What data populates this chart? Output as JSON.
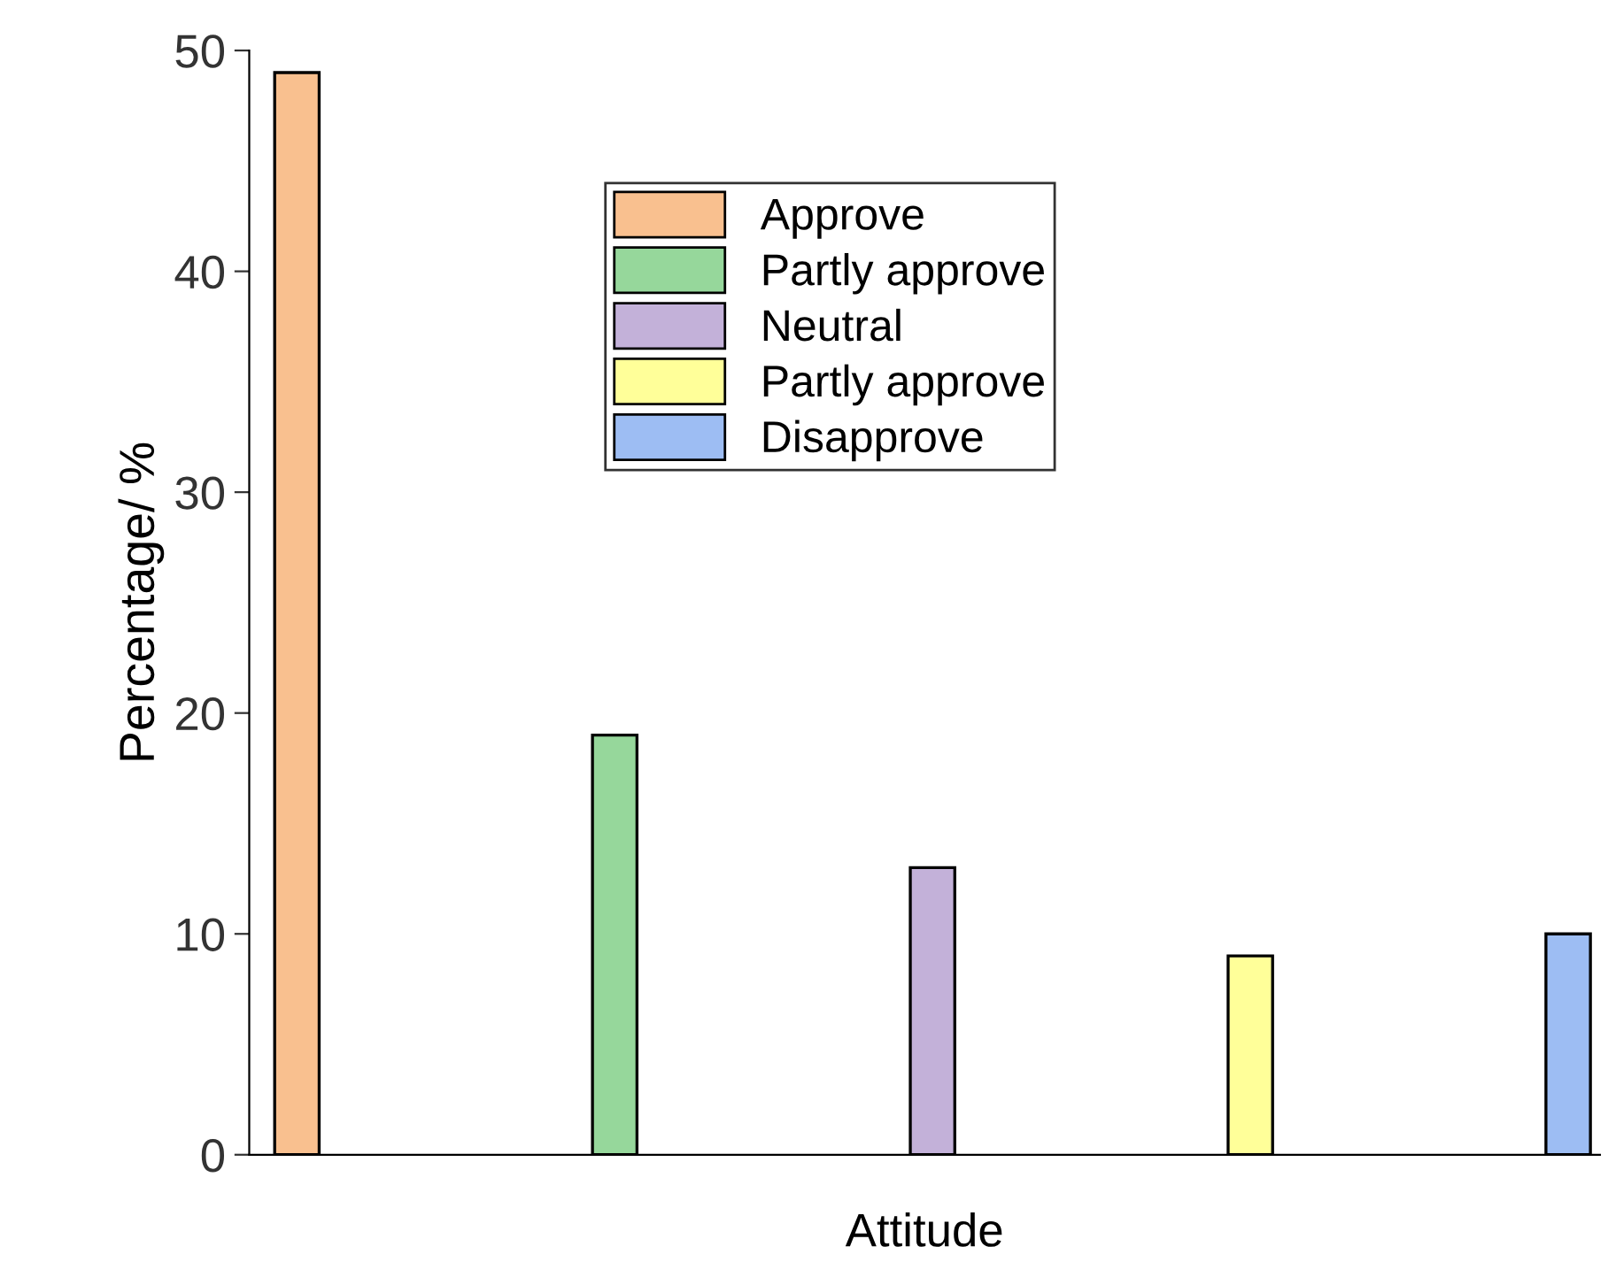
{
  "chart_data": {
    "type": "bar",
    "xlabel": "Attitude",
    "ylabel": "Percentage/ %",
    "categories": [
      null,
      null,
      null,
      null,
      null
    ],
    "series": [
      {
        "name": "Approve",
        "color": "#f9c08f",
        "values": [
          49,
          null,
          null,
          null,
          null
        ]
      },
      {
        "name": "Partly approve",
        "color": "#96d79b",
        "values": [
          null,
          19,
          null,
          null,
          null
        ]
      },
      {
        "name": "Neutral",
        "color": "#c3b1d9",
        "values": [
          null,
          null,
          13,
          null,
          null
        ]
      },
      {
        "name": "Partly approve",
        "color": "#ffff99",
        "values": [
          null,
          null,
          null,
          9,
          null
        ]
      },
      {
        "name": "Disapprove",
        "color": "#9dbdf3",
        "values": [
          null,
          null,
          null,
          null,
          10
        ]
      }
    ],
    "ylim": [
      0,
      50
    ],
    "yticks": [
      0,
      10,
      20,
      30,
      40,
      50
    ],
    "grid": false,
    "legend": "top"
  }
}
